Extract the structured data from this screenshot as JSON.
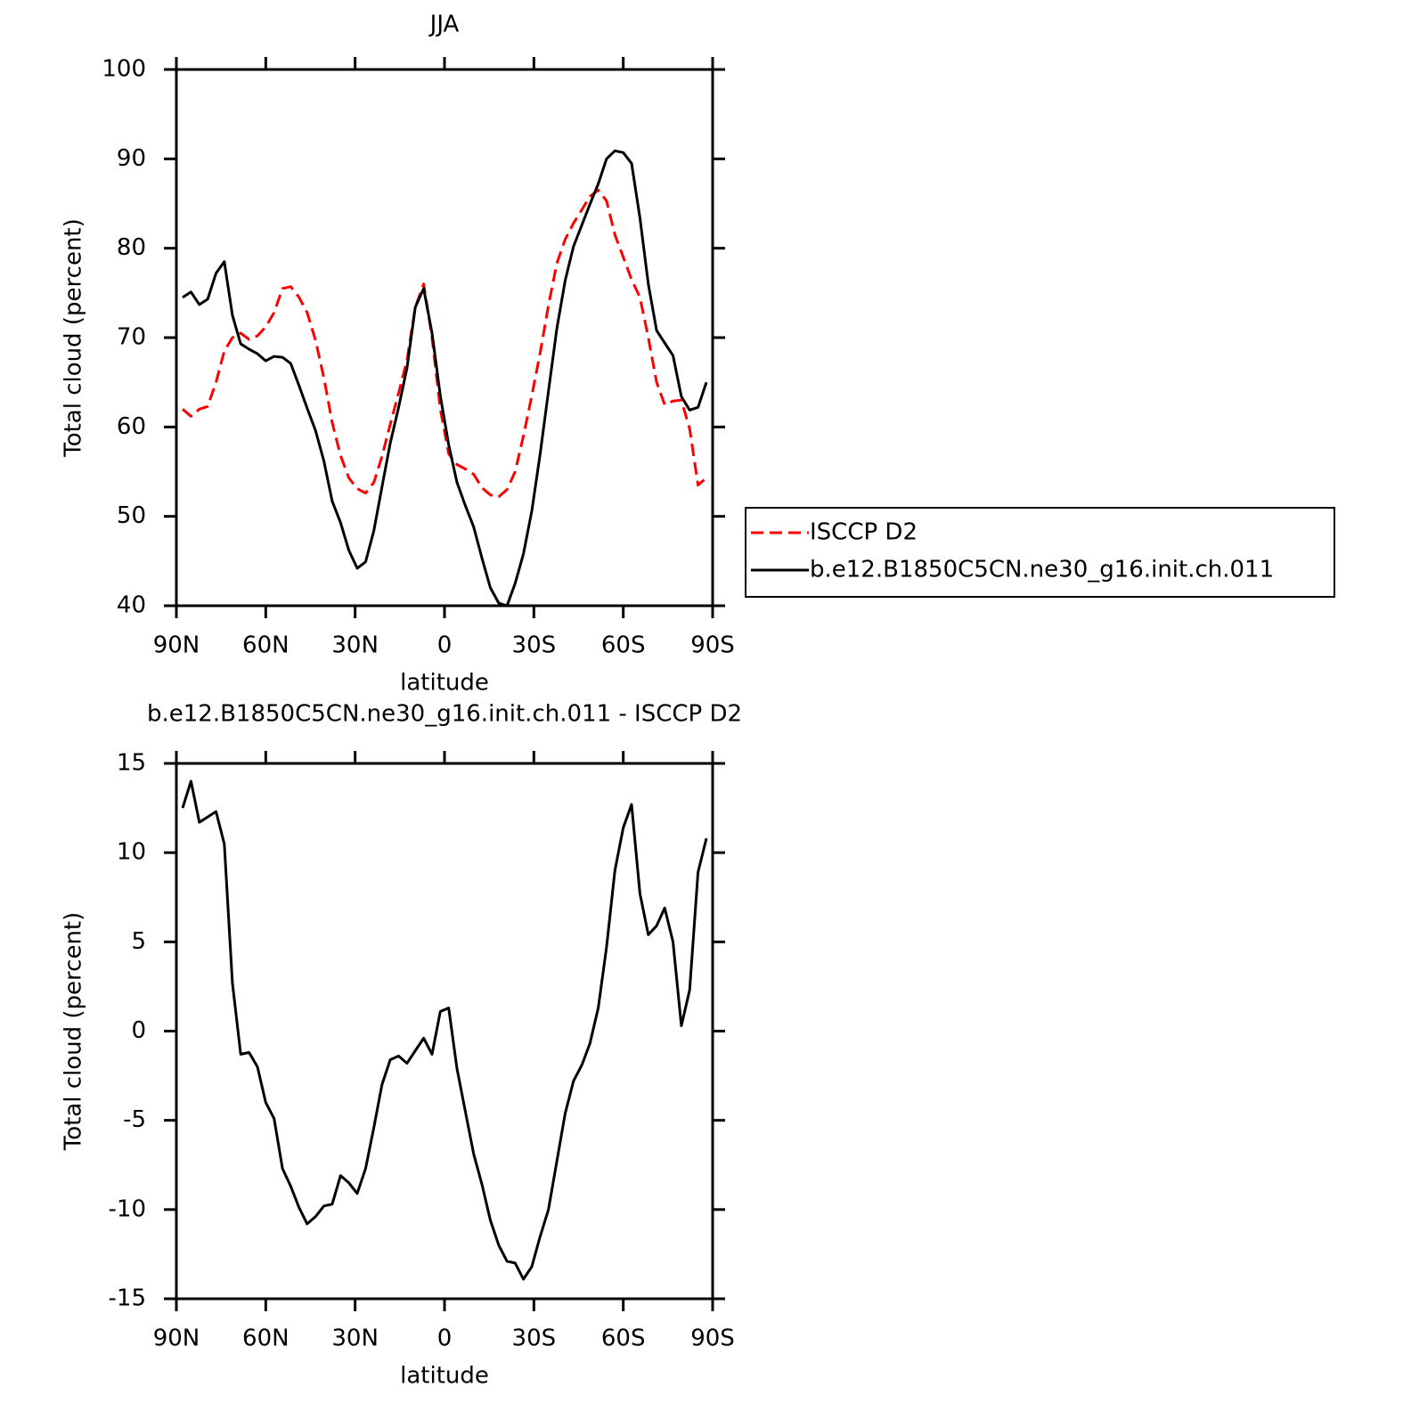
{
  "chart_data": [
    {
      "type": "line",
      "title": "JJA",
      "xlabel": "latitude",
      "ylabel": "Total cloud (percent)",
      "x": [
        87.9,
        85.1,
        82.3,
        79.5,
        76.7,
        73.9,
        71.2,
        68.4,
        65.6,
        62.8,
        60.0,
        57.2,
        54.4,
        51.6,
        48.8,
        46.1,
        43.3,
        40.5,
        37.7,
        34.9,
        32.1,
        29.3,
        26.5,
        23.7,
        21.0,
        18.2,
        15.4,
        12.6,
        9.8,
        7.0,
        4.2,
        1.4,
        -1.4,
        -4.2,
        -7.0,
        -9.8,
        -12.6,
        -15.4,
        -18.2,
        -21.0,
        -23.7,
        -26.5,
        -29.3,
        -32.1,
        -34.9,
        -37.7,
        -40.5,
        -43.3,
        -46.1,
        -48.8,
        -51.6,
        -54.4,
        -57.2,
        -60.0,
        -62.8,
        -65.6,
        -68.4,
        -71.2,
        -73.9,
        -76.7,
        -79.5,
        -82.3,
        -85.1,
        -87.9
      ],
      "series": [
        {
          "name": "ISCCP D2",
          "color": "#ff0000",
          "linestyle": "dashed",
          "values": [
            62.0,
            61.2,
            62.0,
            62.3,
            65.0,
            68.5,
            70.0,
            70.5,
            69.8,
            70.2,
            71.2,
            72.8,
            75.5,
            75.7,
            74.5,
            72.8,
            69.7,
            65.5,
            60.5,
            56.8,
            54.3,
            53.1,
            52.6,
            53.8,
            56.7,
            60.3,
            63.8,
            67.5,
            73.4,
            76.0,
            70.0,
            62.0,
            57.0,
            55.8,
            55.3,
            54.7,
            53.2,
            52.4,
            52.2,
            53.0,
            55.0,
            59.0,
            63.5,
            68.3,
            73.6,
            78.3,
            81.0,
            82.8,
            84.3,
            85.8,
            86.5,
            85.3,
            81.5,
            79.0,
            76.5,
            74.5,
            70.0,
            65.0,
            62.5,
            62.9,
            63.0,
            59.8,
            53.5,
            54.3
          ]
        },
        {
          "name": "b.e12.B1850C5CN.ne30_g16.init.ch.011",
          "color": "#000000",
          "linestyle": "solid",
          "values": [
            74.5,
            75.1,
            73.7,
            74.3,
            77.2,
            78.5,
            72.5,
            69.3,
            68.7,
            68.2,
            67.4,
            67.9,
            67.8,
            67.1,
            64.6,
            62.1,
            59.6,
            56.2,
            51.7,
            49.3,
            46.2,
            44.2,
            44.9,
            48.4,
            53.3,
            58.2,
            62.2,
            66.6,
            73.4,
            75.5,
            70.5,
            63.5,
            58.0,
            53.8,
            51.2,
            48.8,
            45.3,
            42.0,
            40.3,
            40.0,
            42.5,
            45.8,
            50.6,
            57.0,
            64.0,
            71.0,
            76.4,
            80.2,
            82.6,
            84.9,
            87.2,
            90.0,
            90.9,
            90.7,
            89.5,
            83.4,
            76.0,
            70.8,
            69.4,
            68.0,
            63.4,
            61.9,
            62.2,
            65.0
          ]
        }
      ],
      "xlim": [
        90,
        -90
      ],
      "xticks": [
        {
          "value": 90,
          "label": "90N"
        },
        {
          "value": 60,
          "label": "60N"
        },
        {
          "value": 30,
          "label": "30N"
        },
        0,
        {
          "value": -30,
          "label": "30S"
        },
        {
          "value": -60,
          "label": "60S"
        },
        {
          "value": -90,
          "label": "90S"
        }
      ],
      "ylim": [
        40,
        100
      ],
      "yticks": [
        40,
        50,
        60,
        70,
        80,
        90,
        100
      ],
      "legend": "right"
    },
    {
      "type": "line",
      "title": "b.e12.B1850C5CN.ne30_g16.init.ch.011 - ISCCP D2",
      "xlabel": "latitude",
      "ylabel": "Total cloud (percent)",
      "x": [
        87.9,
        85.1,
        82.3,
        79.5,
        76.7,
        73.9,
        71.2,
        68.4,
        65.6,
        62.8,
        60.0,
        57.2,
        54.4,
        51.6,
        48.8,
        46.1,
        43.3,
        40.5,
        37.7,
        34.9,
        32.1,
        29.3,
        26.5,
        23.7,
        21.0,
        18.2,
        15.4,
        12.6,
        9.8,
        7.0,
        4.2,
        1.4,
        -1.4,
        -4.2,
        -7.0,
        -9.8,
        -12.6,
        -15.4,
        -18.2,
        -21.0,
        -23.7,
        -26.5,
        -29.3,
        -32.1,
        -34.9,
        -37.7,
        -40.5,
        -43.3,
        -46.1,
        -48.8,
        -51.6,
        -54.4,
        -57.2,
        -60.0,
        -62.8,
        -65.6,
        -68.4,
        -71.2,
        -73.9,
        -76.7,
        -79.5,
        -82.3,
        -85.1,
        -87.9
      ],
      "color": "#000000",
      "values": [
        12.5,
        14.0,
        11.7,
        12.0,
        12.3,
        10.5,
        2.7,
        -1.3,
        -1.2,
        -2.0,
        -4.0,
        -4.9,
        -7.7,
        -8.7,
        -9.9,
        -10.8,
        -10.4,
        -9.8,
        -9.7,
        -8.1,
        -8.5,
        -9.1,
        -7.7,
        -5.4,
        -3.0,
        -1.6,
        -1.4,
        -1.8,
        -1.1,
        -0.4,
        -1.3,
        1.1,
        1.3,
        -2.1,
        -4.5,
        -6.9,
        -8.6,
        -10.6,
        -12.0,
        -12.9,
        -13.0,
        -13.9,
        -13.2,
        -11.5,
        -10.0,
        -7.3,
        -4.6,
        -2.8,
        -1.9,
        -0.7,
        1.3,
        4.7,
        9.0,
        11.4,
        12.7,
        7.7,
        5.4,
        5.9,
        6.9,
        5.0,
        0.3,
        2.3,
        8.9,
        10.8
      ],
      "xlim": [
        90,
        -90
      ],
      "xticks": [
        {
          "value": 90,
          "label": "90N"
        },
        {
          "value": 60,
          "label": "60N"
        },
        {
          "value": 30,
          "label": "30N"
        },
        0,
        {
          "value": -30,
          "label": "30S"
        },
        {
          "value": -60,
          "label": "60S"
        },
        {
          "value": -90,
          "label": "90S"
        }
      ],
      "ylim": [
        -15,
        15
      ],
      "yticks": [
        -15,
        -10,
        -5,
        0,
        5,
        10,
        15
      ]
    }
  ]
}
